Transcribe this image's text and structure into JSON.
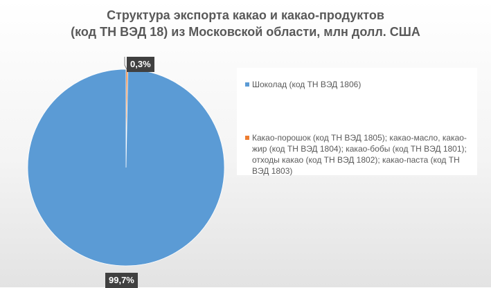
{
  "chart_data": {
    "type": "pie",
    "title_lines": [
      "Структура экспорта какао и какао-продуктов",
      "(код ТН ВЭД 18) из Московской области, млн долл. США"
    ],
    "categories": [
      "Шоколад (код ТН ВЭД 1806)",
      "Какао-порошок (код ТН ВЭД 1805); какао-масло, какао-жир (код ТН ВЭД 1804); какао-бобы (код ТН ВЭД 1801); отходы какао (код ТН ВЭД 1802); какао-паста (код ТН ВЭД 1803)"
    ],
    "values": [
      99.7,
      0.3
    ],
    "data_labels": [
      "99,7%",
      "0,3%"
    ],
    "colors": [
      "#5b9bd5",
      "#ed7d31"
    ],
    "legend_position": "right"
  }
}
